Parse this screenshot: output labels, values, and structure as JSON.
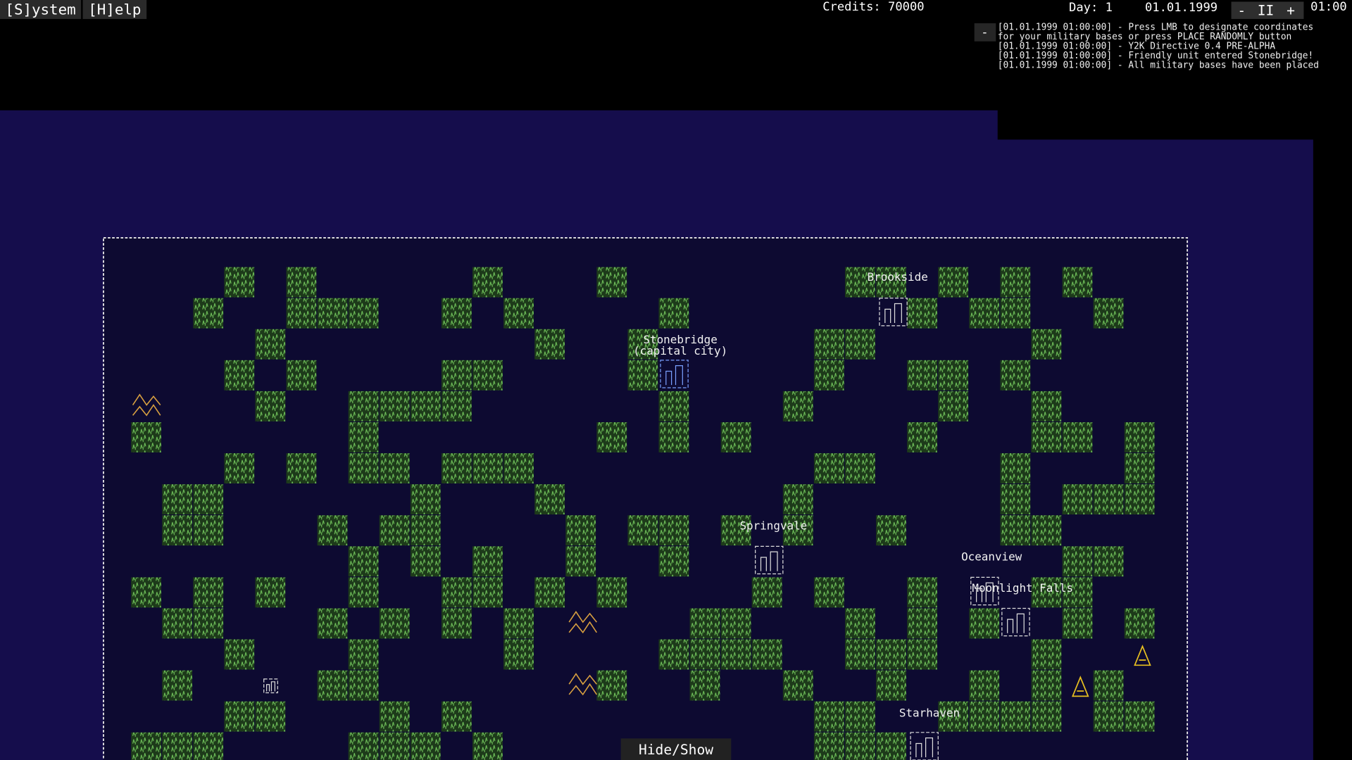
{
  "menu": {
    "system": "[S]ystem",
    "help": "[H]elp"
  },
  "status": {
    "credits": "Credits: 70000",
    "day": "Day: 1",
    "date": "01.01.1999",
    "time": "01:00",
    "speed_down": "-",
    "pause": "II",
    "speed_up": "+"
  },
  "log": {
    "collapse": "-",
    "lines": [
      "[01.01.1999 01:00:00] - Press LMB to designate coordinates",
      "for your military bases or press PLACE RANDOMLY button",
      "[01.01.1999 01:00:00] - Y2K Directive 0.4 PRE-ALPHA",
      "[01.01.1999 01:00:00] - Friendly unit entered Stonebridge!",
      "[01.01.1999 01:00:00] - All military bases have been placed"
    ]
  },
  "cities": [
    {
      "label": "Brookside"
    },
    {
      "label": "Stonebridge",
      "note": "(capital city)"
    },
    {
      "label": "Springvale"
    },
    {
      "label": "Oceanview"
    },
    {
      "label": "Moonlight Falls"
    },
    {
      "label": "Starhaven"
    }
  ],
  "hide_show": "Hide/Show"
}
